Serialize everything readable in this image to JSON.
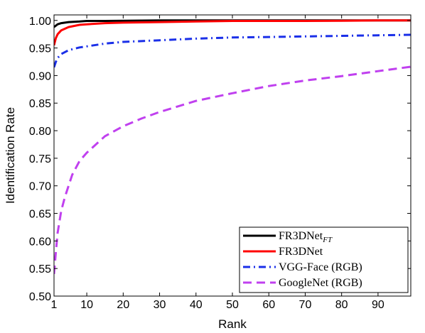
{
  "chart_data": {
    "type": "line",
    "title": "",
    "xlabel": "Rank",
    "ylabel": "Identification Rate",
    "xlim": [
      1,
      99
    ],
    "ylim": [
      0.5,
      1.01
    ],
    "xticks": [
      "1",
      "10",
      "20",
      "30",
      "40",
      "50",
      "60",
      "70",
      "80",
      "90"
    ],
    "yticks": [
      "0.50",
      "0.55",
      "0.60",
      "0.65",
      "0.70",
      "0.75",
      "0.80",
      "0.85",
      "0.90",
      "0.95",
      "1.00"
    ],
    "grid": false,
    "legend_position": "bottom-right",
    "series": [
      {
        "name": "FR3DNet",
        "name_sub": "FT",
        "color": "#000000",
        "style": "solid",
        "x": [
          1,
          2,
          3,
          5,
          8,
          10,
          15,
          20,
          30,
          40,
          50,
          60,
          70,
          80,
          90,
          99
        ],
        "y": [
          0.988,
          0.993,
          0.995,
          0.997,
          0.998,
          0.999,
          0.999,
          0.9995,
          1.0,
          1.0,
          1.0,
          1.0,
          1.0,
          1.0,
          1.0,
          1.0
        ]
      },
      {
        "name": "FR3DNet",
        "color": "#ff0000",
        "style": "solid",
        "x": [
          1,
          1.5,
          2,
          3,
          5,
          8,
          10,
          15,
          20,
          30,
          40,
          50,
          60,
          70,
          80,
          90,
          99
        ],
        "y": [
          0.955,
          0.968,
          0.975,
          0.982,
          0.988,
          0.992,
          0.993,
          0.995,
          0.996,
          0.997,
          0.998,
          0.999,
          0.999,
          0.999,
          0.9995,
          1.0,
          1.0
        ]
      },
      {
        "name": "VGG-Face (RGB)",
        "color": "#1a2fe8",
        "style": "dashdot",
        "x": [
          1,
          1.5,
          2,
          3,
          5,
          8,
          10,
          15,
          20,
          30,
          40,
          50,
          60,
          70,
          80,
          90,
          99
        ],
        "y": [
          0.915,
          0.925,
          0.932,
          0.939,
          0.946,
          0.951,
          0.953,
          0.958,
          0.961,
          0.964,
          0.967,
          0.969,
          0.97,
          0.971,
          0.972,
          0.973,
          0.974
        ]
      },
      {
        "name": "GoogleNet (RGB)",
        "color": "#c040ef",
        "style": "dashed",
        "x": [
          1,
          1.5,
          2,
          3,
          4,
          6,
          8,
          10,
          15,
          20,
          25,
          30,
          40,
          50,
          60,
          70,
          80,
          90,
          99
        ],
        "y": [
          0.54,
          0.58,
          0.615,
          0.655,
          0.68,
          0.72,
          0.745,
          0.76,
          0.79,
          0.808,
          0.822,
          0.834,
          0.854,
          0.868,
          0.881,
          0.891,
          0.899,
          0.908,
          0.916
        ]
      }
    ]
  }
}
